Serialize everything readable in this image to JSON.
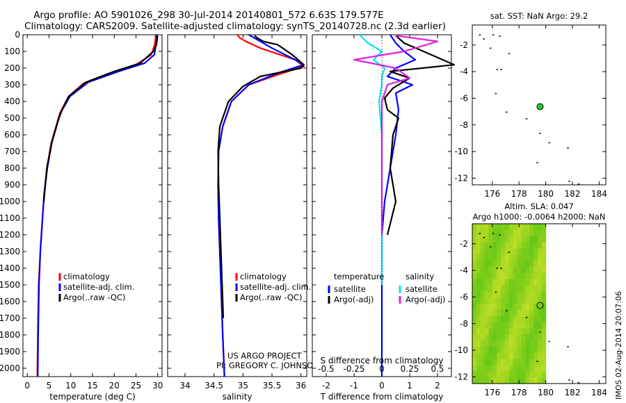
{
  "header": {
    "line1": "Argo profile: AO 5901026_298 30-Jul-2014 20140801_572 6.63S 179.577E",
    "line2": "Climatology: CARS2009. Satellite-adjusted climatology: synTS_20140728.nc (2.3d earlier)"
  },
  "colors": {
    "climatology": "#ff0000",
    "satellite": "#0000ff",
    "argo": "#000000",
    "s_sat": "#00e5ee",
    "s_argo": "#e020e0"
  },
  "chart_data": [
    {
      "type": "line",
      "name": "temperature",
      "xlabel": "temperature (deg C)",
      "xlim": [
        -1,
        31
      ],
      "xticks": [
        0,
        5,
        10,
        15,
        20,
        25,
        30
      ],
      "xtick_labels": [
        "0",
        "5",
        "10",
        "15",
        "20",
        "25",
        "30"
      ],
      "ylim": [
        0,
        2050
      ],
      "yticks": [
        0,
        100,
        200,
        300,
        400,
        500,
        600,
        700,
        800,
        900,
        1000,
        1100,
        1200,
        1300,
        1400,
        1500,
        1600,
        1700,
        1800,
        1900,
        2000
      ],
      "ytick_labels": [
        "0",
        "100",
        "200",
        "300",
        "400",
        "500",
        "600",
        "700",
        "800",
        "900",
        "1000",
        "1100",
        "1200",
        "1300",
        "1400",
        "1500",
        "1600",
        "1700",
        "1800",
        "1900",
        "2000"
      ],
      "legend": [
        "climatology",
        "satellite-adj. clim.",
        "Argo(..raw -QC)"
      ],
      "series": [
        {
          "name": "climatology",
          "color": "#ff0000",
          "x": [
            29.5,
            29.5,
            29.3,
            28.5,
            25,
            19,
            13,
            9.5,
            7.5,
            5.5,
            4.5,
            3.9,
            3.5,
            3.0,
            2.6,
            2.4,
            2.3
          ],
          "y": [
            0,
            20,
            60,
            120,
            180,
            230,
            290,
            370,
            470,
            650,
            800,
            950,
            1100,
            1300,
            1500,
            1800,
            2050
          ]
        },
        {
          "name": "satellite-adj. clim.",
          "color": "#0000ff",
          "x": [
            29.8,
            29.8,
            29.6,
            29.2,
            27,
            21,
            14,
            9.8,
            7.6,
            5.6,
            4.6,
            3.9,
            3.5,
            3.0,
            2.7,
            2.5,
            2.4
          ],
          "y": [
            0,
            20,
            60,
            120,
            170,
            220,
            285,
            370,
            470,
            650,
            800,
            950,
            1100,
            1300,
            1500,
            1800,
            2050
          ]
        },
        {
          "name": "Argo(..raw -QC)",
          "color": "#000000",
          "x": [
            29.9,
            29.9,
            29.7,
            29.0,
            26,
            20,
            13.5,
            9.5,
            8.0,
            7.0,
            5.6,
            4.5,
            3.8
          ],
          "y": [
            5,
            20,
            60,
            100,
            170,
            220,
            285,
            370,
            450,
            520,
            650,
            800,
            1000
          ]
        }
      ]
    },
    {
      "type": "line",
      "name": "salinity",
      "xlabel": "salinity",
      "xlim": [
        33.7,
        36.1
      ],
      "xticks": [
        34,
        34.5,
        35,
        35.5,
        36
      ],
      "xtick_labels": [
        "34",
        "34.5",
        "35",
        "35.5",
        "36"
      ],
      "ylim": [
        0,
        2050
      ],
      "legend": [
        "climatology",
        "satellite-adj. clim.",
        "Argo(..raw -QC)"
      ],
      "annotation": [
        "US ARGO PROJECT",
        "PI: GREGORY C. JOHNSON"
      ],
      "series": [
        {
          "name": "climatology",
          "color": "#ff0000",
          "x": [
            34.9,
            34.95,
            35.05,
            35.3,
            35.9,
            36.05,
            35.6,
            35.1,
            34.8,
            34.65,
            34.58,
            34.57,
            34.58,
            34.6,
            34.62,
            34.65,
            34.68
          ],
          "y": [
            0,
            20,
            40,
            80,
            150,
            190,
            240,
            300,
            400,
            550,
            700,
            900,
            1100,
            1300,
            1500,
            1800,
            2050
          ]
        },
        {
          "name": "satellite-adj. clim.",
          "color": "#0000ff",
          "x": [
            35.1,
            35.2,
            35.3,
            35.5,
            35.9,
            36.05,
            35.6,
            35.1,
            34.8,
            34.65,
            34.58,
            34.57,
            34.58,
            34.6,
            34.62,
            34.65,
            34.68
          ],
          "y": [
            0,
            20,
            40,
            80,
            150,
            180,
            230,
            300,
            400,
            550,
            700,
            900,
            1100,
            1300,
            1500,
            1800,
            2050
          ]
        },
        {
          "name": "Argo(..raw -QC)",
          "color": "#000000",
          "x": [
            35.2,
            35.25,
            35.35,
            35.6,
            35.85,
            36.05,
            36.0,
            35.3,
            35.0,
            34.75,
            34.6,
            34.57,
            34.58,
            34.6,
            34.63,
            34.66
          ],
          "y": [
            5,
            20,
            40,
            60,
            120,
            180,
            200,
            250,
            310,
            400,
            550,
            700,
            900,
            1100,
            1400,
            1700
          ]
        }
      ]
    },
    {
      "type": "line",
      "name": "difference",
      "xlabel": "T difference from climatology",
      "xlabel2": "S difference from climatology",
      "xlim": [
        -2.5,
        2.5
      ],
      "xticks": [
        -2,
        -1,
        0,
        1,
        2
      ],
      "xtick_labels": [
        "-2",
        "-1",
        "0",
        "1",
        "2"
      ],
      "xticks_top": [
        -0.5,
        -0.25,
        0,
        0.25,
        0.5
      ],
      "xtick_labels_top": [
        "-0.5",
        "-0.25",
        "0",
        "0.25",
        "0.5"
      ],
      "ylim": [
        0,
        2050
      ],
      "legend_left_title": "temperature",
      "legend_left": [
        "satellite",
        "Argo(-adj)"
      ],
      "legend_right_title": "salinity",
      "legend_right": [
        "satellite",
        "Argo(-adj)"
      ],
      "series": [
        {
          "name": "T satellite",
          "color": "#0000ff",
          "x": [
            0.3,
            0.5,
            0.8,
            1.2,
            0.5,
            0.2,
            1.1,
            0.5,
            0.6,
            0.5,
            0.3,
            0.1,
            0.0,
            0.0,
            0.0,
            0.0
          ],
          "y": [
            0,
            50,
            100,
            150,
            200,
            250,
            300,
            350,
            450,
            600,
            800,
            1000,
            1200,
            1500,
            1800,
            2050
          ]
        },
        {
          "name": "T Argo(-adj)",
          "color": "#000000",
          "x": [
            0.5,
            0.8,
            1.5,
            2.6,
            0.3,
            1.0,
            0.4,
            0.1,
            0.2,
            0.6,
            0.4,
            0.3,
            0.5,
            0.2
          ],
          "y": [
            5,
            50,
            100,
            180,
            220,
            260,
            320,
            380,
            450,
            500,
            600,
            800,
            1000,
            1200
          ]
        },
        {
          "name": "S satellite",
          "color": "#00e5ee",
          "x": [
            -0.8,
            -0.5,
            0.0,
            -0.3,
            0.1,
            0.0,
            0.0,
            -0.1,
            0.0,
            0.0,
            0.0,
            0.0
          ],
          "y": [
            0,
            50,
            100,
            150,
            200,
            250,
            300,
            400,
            600,
            800,
            1100,
            1500
          ]
        },
        {
          "name": "S Argo(-adj)",
          "color": "#e020e0",
          "x": [
            0.5,
            2.0,
            0.8,
            -1.0,
            0.5,
            1.0,
            0.2,
            0.0,
            0.0,
            0.0,
            0.0
          ],
          "y": [
            5,
            40,
            100,
            150,
            200,
            260,
            300,
            400,
            600,
            900,
            1200
          ]
        }
      ]
    },
    {
      "type": "map",
      "name": "sst-map",
      "title": "sat. SST: NaN Argo: 29.2",
      "xlim": [
        174.5,
        184.5
      ],
      "ylim": [
        -12.5,
        -0.5
      ],
      "xticks": [
        176,
        178,
        180,
        182,
        184
      ],
      "xtick_labels": [
        "176",
        "178",
        "180",
        "182",
        "184"
      ],
      "yticks": [
        -2,
        -4,
        -6,
        -8,
        -10,
        -12
      ],
      "ytick_labels": [
        "-2",
        "-4",
        "-6",
        "-8",
        "-10",
        "-12"
      ],
      "marker": {
        "lon": 179.577,
        "lat": -6.63
      },
      "coast_points": [
        [
          175,
          -1.2
        ],
        [
          175.3,
          -1.5
        ],
        [
          176,
          -1.2
        ],
        [
          176.5,
          -1.3
        ],
        [
          175.8,
          -2.2
        ],
        [
          177.2,
          -2.6
        ],
        [
          176.3,
          -3.8
        ],
        [
          176.6,
          -3.8
        ],
        [
          176.2,
          -5.6
        ],
        [
          177,
          -7
        ],
        [
          178.5,
          -7.5
        ],
        [
          179.5,
          -8.6
        ],
        [
          180.2,
          -9.3
        ],
        [
          181.6,
          -9.7
        ],
        [
          179.3,
          -10.8
        ],
        [
          181.7,
          -12.2
        ],
        [
          182.4,
          -12.4
        ]
      ]
    },
    {
      "type": "heatmap",
      "name": "sla-map",
      "title1": "Altim. SLA: 0.047",
      "title2": "Argo h1000: -0.0064 h2000: NaN",
      "xlim": [
        174.5,
        184.5
      ],
      "ylim": [
        -12.5,
        -0.5
      ],
      "xticks": [
        176,
        178,
        180,
        182,
        184
      ],
      "xtick_labels": [
        "176",
        "178",
        "180",
        "182",
        "184"
      ],
      "yticks": [
        -2,
        -4,
        -6,
        -8,
        -10,
        -12
      ],
      "ytick_labels": [
        "-2",
        "-4",
        "-6",
        "-8",
        "-10",
        "-12"
      ],
      "data_lon_range": [
        174.5,
        180
      ],
      "marker": {
        "lon": 179.577,
        "lat": -6.63
      },
      "coast_points": [
        [
          175,
          -1.2
        ],
        [
          175.3,
          -1.5
        ],
        [
          176,
          -1.2
        ],
        [
          176.5,
          -1.3
        ],
        [
          175.8,
          -2.2
        ],
        [
          177.2,
          -2.6
        ],
        [
          176.3,
          -3.8
        ],
        [
          176.6,
          -3.8
        ],
        [
          176.2,
          -5.6
        ],
        [
          177,
          -7
        ],
        [
          178.5,
          -7.5
        ],
        [
          179.5,
          -8.6
        ],
        [
          180.2,
          -9.3
        ],
        [
          181.6,
          -9.7
        ],
        [
          179.3,
          -10.8
        ],
        [
          181.7,
          -12.2
        ],
        [
          182.4,
          -12.4
        ]
      ]
    }
  ],
  "stamp": "IMOS 02-Aug-2014 20:07:06"
}
